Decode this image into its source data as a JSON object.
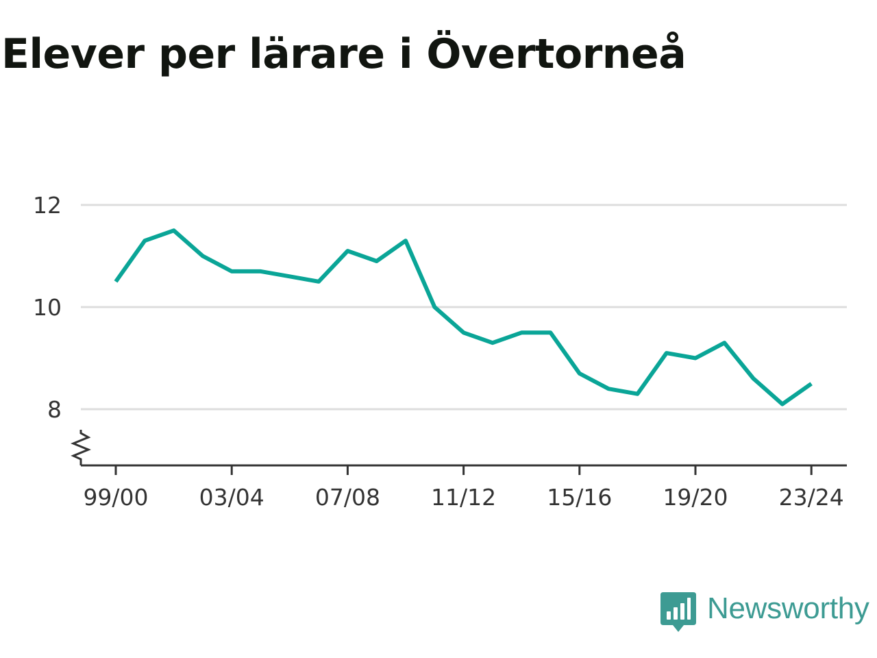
{
  "title": "Elever per lärare i Övertorneå",
  "brand": {
    "name": "Newsworthy",
    "logo_icon": "bar-chart-speech-bubble-icon",
    "color": "#3d9b93"
  },
  "colors": {
    "line": "#0aa597",
    "grid": "#dddddd",
    "axis": "#333333",
    "title": "#111510"
  },
  "chart_data": {
    "type": "line",
    "title": "Elever per lärare i Övertorneå",
    "xlabel": "",
    "ylabel": "",
    "ylim": [
      6.9,
      12
    ],
    "y_ticks": [
      12,
      10,
      8
    ],
    "y_axis_break": true,
    "grid": true,
    "legend": "none",
    "x_ticks": [
      "99/00",
      "03/04",
      "07/08",
      "11/12",
      "15/16",
      "19/20",
      "23/24"
    ],
    "categories": [
      "99/00",
      "00/01",
      "01/02",
      "02/03",
      "03/04",
      "04/05",
      "05/06",
      "06/07",
      "07/08",
      "08/09",
      "09/10",
      "10/11",
      "11/12",
      "12/13",
      "13/14",
      "14/15",
      "15/16",
      "16/17",
      "17/18",
      "18/19",
      "19/20",
      "20/21",
      "21/22",
      "22/23",
      "23/24"
    ],
    "series": [
      {
        "values": [
          10.5,
          11.3,
          11.5,
          11.0,
          10.7,
          10.7,
          10.6,
          10.5,
          11.1,
          10.9,
          11.3,
          10.0,
          9.5,
          9.3,
          9.5,
          9.5,
          8.7,
          8.4,
          8.3,
          9.1,
          9.0,
          9.3,
          8.6,
          8.1,
          8.5
        ]
      }
    ]
  }
}
